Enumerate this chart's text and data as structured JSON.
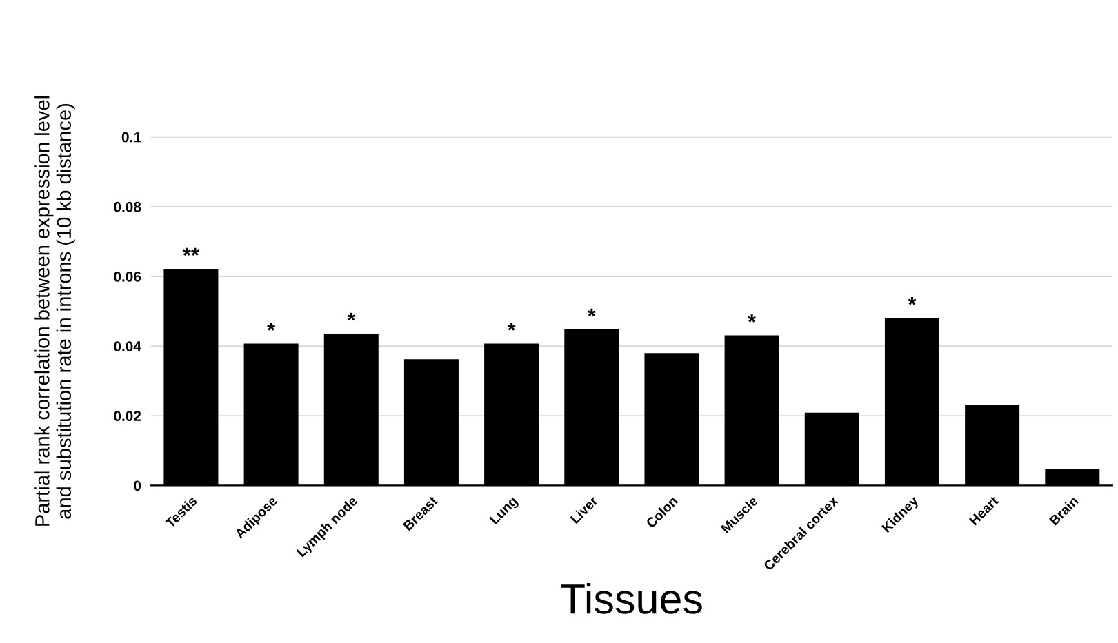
{
  "chart_data": {
    "type": "bar",
    "xlabel": "Tissues",
    "ylabel": "Partial rank correlation between expression level\nand substitution rate in introns (10 kb distance)",
    "categories": [
      "Testis",
      "Adipose",
      "Lymph node",
      "Breast",
      "Lung",
      "Liver",
      "Colon",
      "Muscle",
      "Cerebral cortex",
      "Kidney",
      "Heart",
      "Brain"
    ],
    "values": [
      0.0622,
      0.0407,
      0.0436,
      0.0362,
      0.0407,
      0.0448,
      0.038,
      0.0431,
      0.0209,
      0.0481,
      0.0231,
      0.0047
    ],
    "color": "#000000",
    "ylim": [
      0,
      0.1
    ],
    "yticks": [
      0,
      0.02,
      0.04,
      0.06,
      0.08,
      0.1
    ],
    "grid": "y",
    "legend": false,
    "annotations": [
      {
        "text": "**",
        "x": "Testis",
        "y": 0.0622
      },
      {
        "text": "*",
        "x": "Adipose",
        "y": 0.0407
      },
      {
        "text": "*",
        "x": "Lymph node",
        "y": 0.0436
      },
      {
        "text": "*",
        "x": "Lung",
        "y": 0.0407
      },
      {
        "text": "*",
        "x": "Liver",
        "y": 0.0448
      },
      {
        "text": "*",
        "x": "Muscle",
        "y": 0.0431
      },
      {
        "text": "*",
        "x": "Kidney",
        "y": 0.0481
      }
    ]
  }
}
